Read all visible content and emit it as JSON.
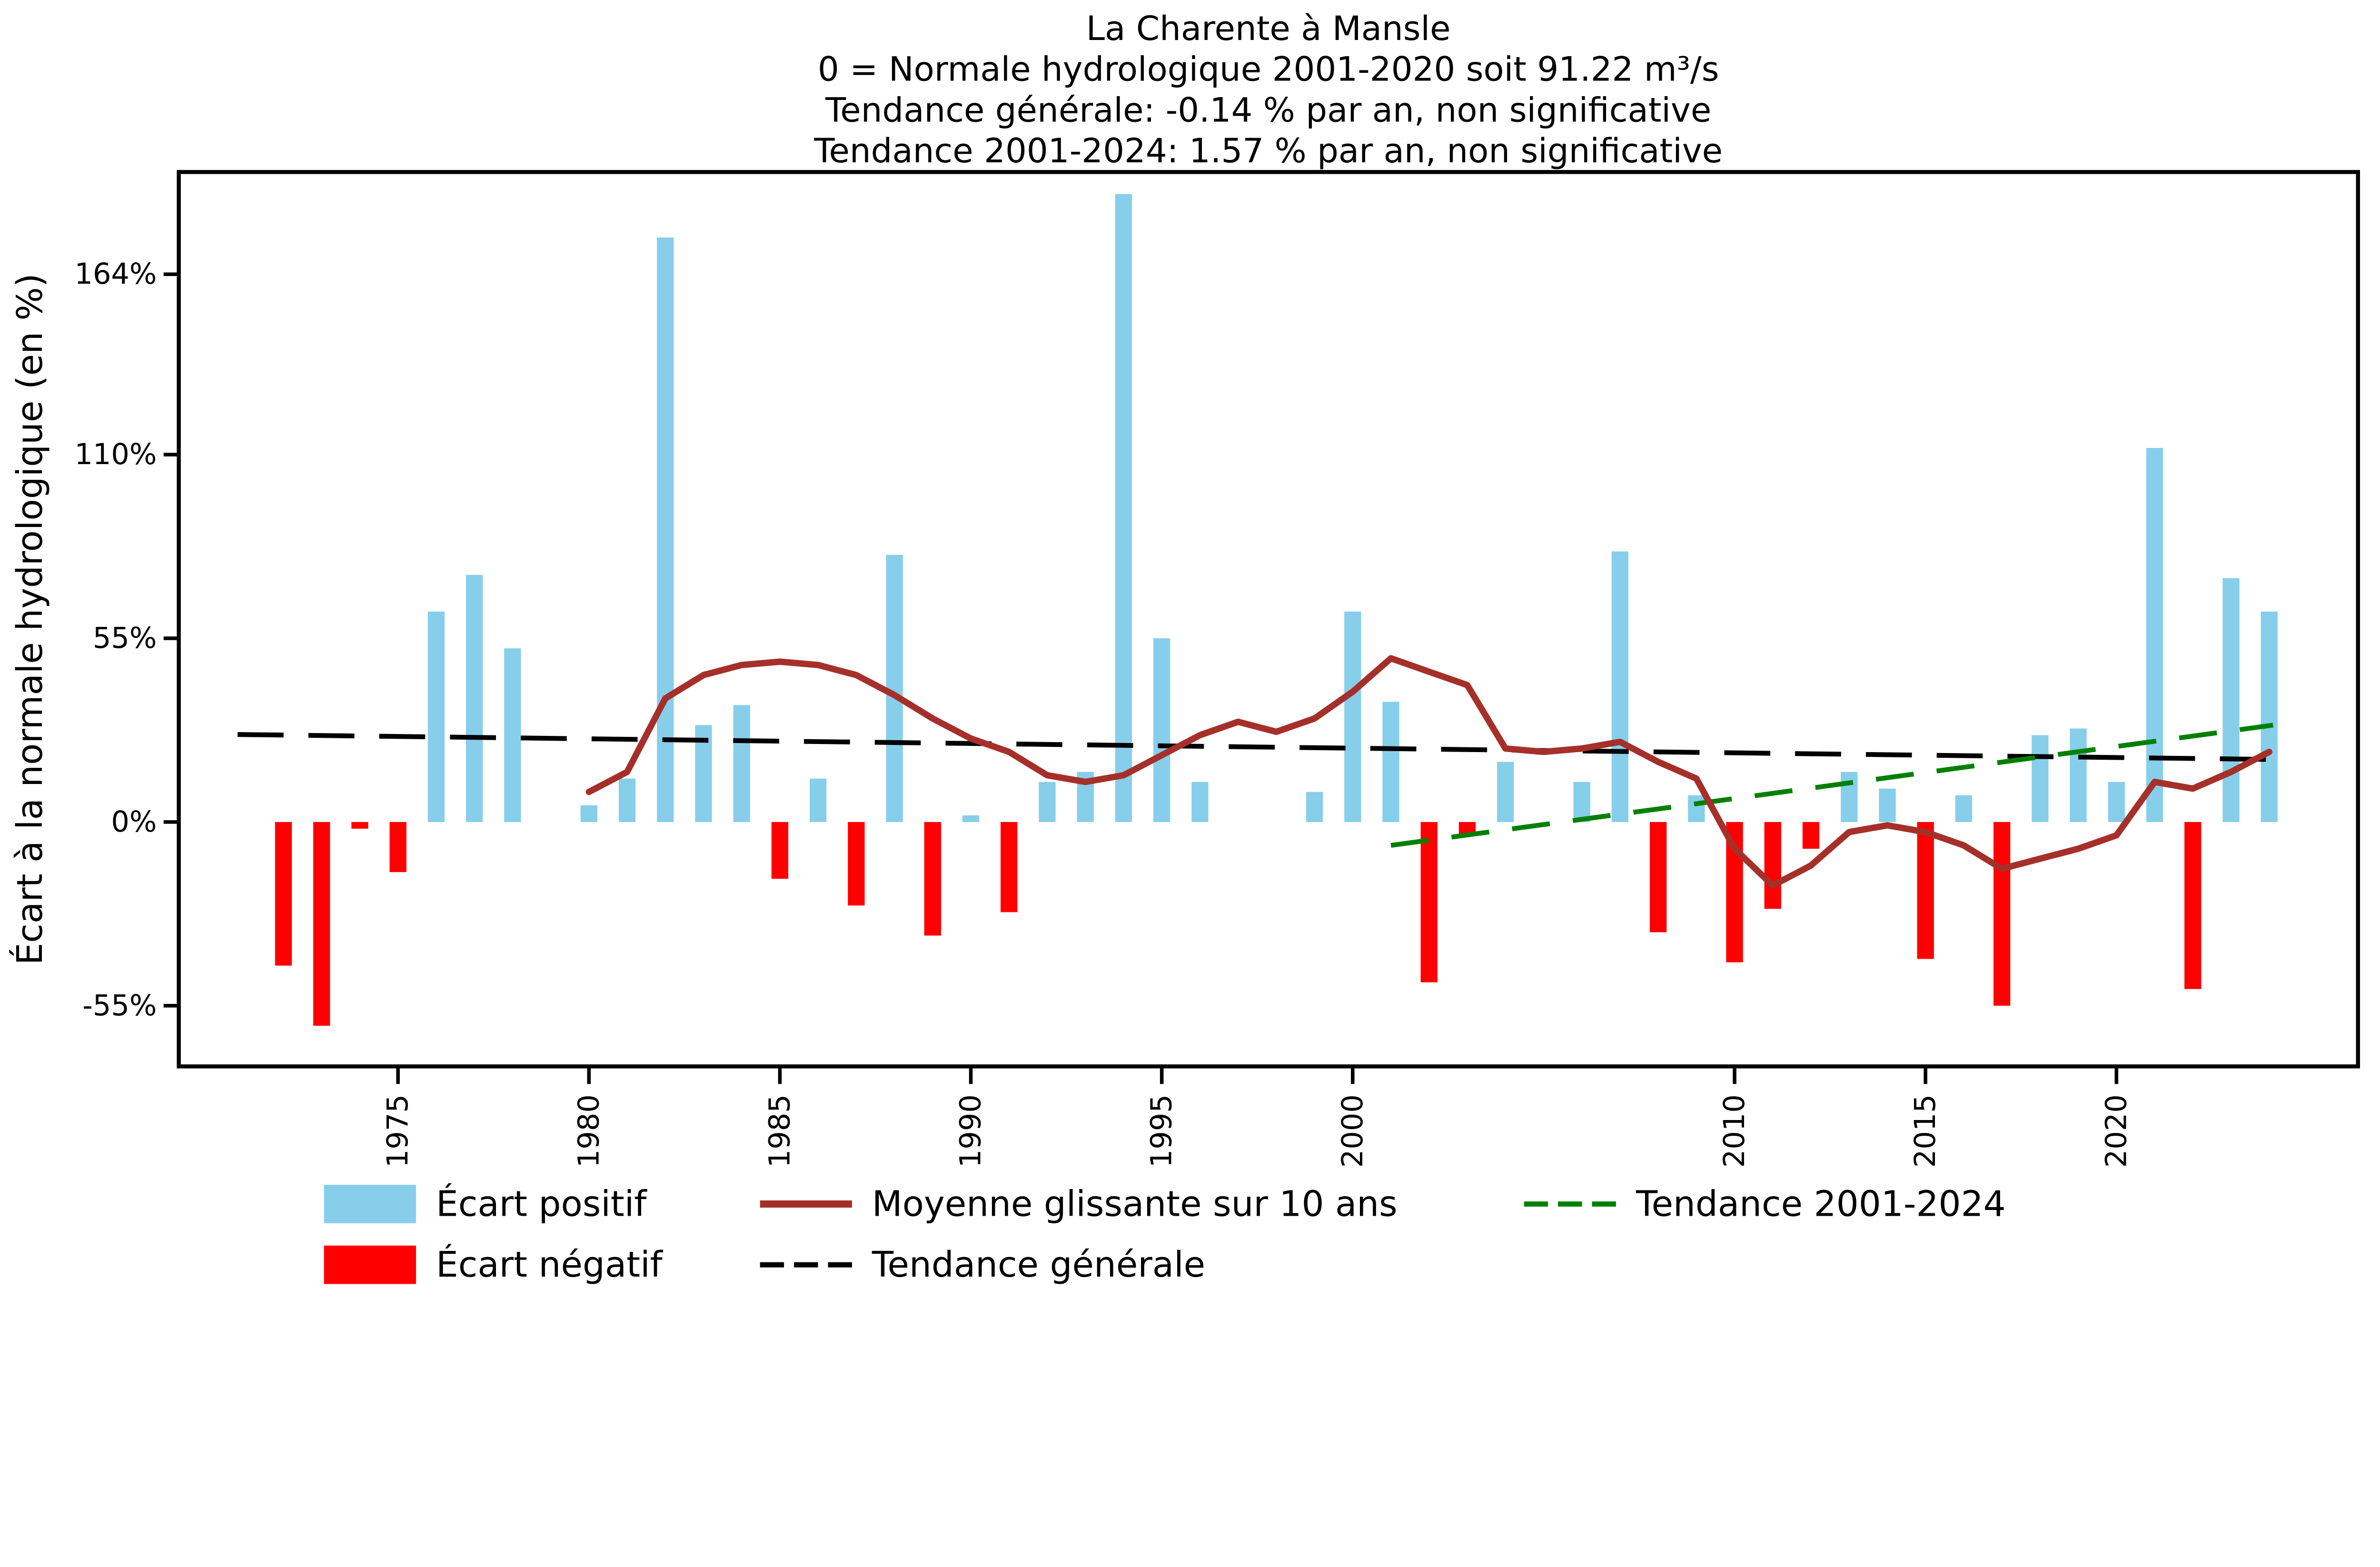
{
  "chart_data": {
    "type": "bar",
    "title": "La Charente à Mansle",
    "subtitles": [
      "0 = Normale hydrologique 2001-2020 soit 91.22 m³/s",
      "Tendance générale: -0.14 % par an, non significative",
      "Tendance 2001-2024: 1.57 % par an, non significative"
    ],
    "ylabel": "Écart à la normale hydrologique (en %)",
    "xlabel": "",
    "ylim": [
      -73,
      195
    ],
    "xlim": [
      1969.3,
      2026.6
    ],
    "grid": false,
    "background_color": "#FFFFFF",
    "axis_color": "#000000",
    "yticks": [
      {
        "value": -55,
        "label": "-55%"
      },
      {
        "value": 0,
        "label": "0%"
      },
      {
        "value": 55,
        "label": "55%"
      },
      {
        "value": 110,
        "label": "110%"
      },
      {
        "value": 164,
        "label": "164%"
      }
    ],
    "xticks": [
      {
        "value": 1975,
        "label": "1975"
      },
      {
        "value": 1980,
        "label": "1980"
      },
      {
        "value": 1985,
        "label": "1985"
      },
      {
        "value": 1990,
        "label": "1990"
      },
      {
        "value": 1995,
        "label": "1995"
      },
      {
        "value": 2000,
        "label": "2000"
      },
      {
        "value": 2010,
        "label": "2010"
      },
      {
        "value": 2015,
        "label": "2015"
      },
      {
        "value": 2020,
        "label": "2020"
      }
    ],
    "bars": {
      "name_positive": "Écart positif",
      "name_negative": "Écart négatif",
      "color_positive": "#87CEEB",
      "color_negative": "#FF0000",
      "years": [
        1972,
        1973,
        1974,
        1975,
        1976,
        1977,
        1978,
        1979,
        1980,
        1981,
        1982,
        1983,
        1984,
        1985,
        1986,
        1987,
        1988,
        1989,
        1990,
        1991,
        1992,
        1993,
        1994,
        1995,
        1996,
        1997,
        1998,
        1999,
        2000,
        2001,
        2002,
        2003,
        2004,
        2005,
        2006,
        2007,
        2008,
        2009,
        2010,
        2011,
        2012,
        2013,
        2014,
        2015,
        2016,
        2017,
        2018,
        2019,
        2020,
        2021,
        2022,
        2023,
        2024
      ],
      "values": [
        -43,
        -61,
        -2,
        -15,
        63,
        74,
        52,
        0,
        5,
        13,
        175,
        29,
        35,
        -17,
        13,
        -25,
        80,
        -34,
        2,
        -27,
        12,
        15,
        188,
        55,
        12,
        0,
        0,
        9,
        63,
        36,
        -48,
        -4,
        18,
        0,
        12,
        81,
        -33,
        8,
        -42,
        -26,
        -8,
        15,
        10,
        -41,
        8,
        -55,
        26,
        28,
        12,
        112,
        -50,
        73,
        63
      ]
    },
    "rolling_mean": {
      "name": "Moyenne glissante sur 10 ans",
      "color": "#A5302A",
      "style": "solid",
      "years": [
        1980,
        1981,
        1982,
        1983,
        1984,
        1985,
        1986,
        1987,
        1988,
        1989,
        1990,
        1991,
        1992,
        1993,
        1994,
        1995,
        1996,
        1997,
        1998,
        1999,
        2000,
        2001,
        2002,
        2003,
        2004,
        2005,
        2006,
        2007,
        2008,
        2009,
        2010,
        2011,
        2012,
        2013,
        2014,
        2015,
        2016,
        2017,
        2018,
        2019,
        2020,
        2021,
        2022,
        2023,
        2024
      ],
      "values": [
        9,
        15,
        37,
        44,
        47,
        48,
        47,
        44,
        38,
        31,
        25,
        21,
        14,
        12,
        14,
        20,
        26,
        30,
        27,
        31,
        39,
        49,
        45,
        41,
        22,
        21,
        22,
        24,
        18,
        13,
        -8,
        -19,
        -13,
        -3,
        -1,
        -3,
        -7,
        -14,
        -11,
        -8,
        -4,
        12,
        10,
        15,
        21
      ]
    },
    "trend_general": {
      "name": "Tendance générale",
      "color": "#000000",
      "style": "dashed",
      "slope_label": "-0.14 % par an",
      "x": [
        1970.8,
        2024.3
      ],
      "values": [
        26.2,
        18.7
      ]
    },
    "trend_2001_2024": {
      "name": "Tendance 2001-2024",
      "color": "#008000",
      "style": "dashed",
      "slope_label": "1.57 % par an",
      "x": [
        2001,
        2024.1
      ],
      "values": [
        -7,
        29
      ]
    },
    "legend_position": "bottom",
    "legend_columns": 3
  }
}
